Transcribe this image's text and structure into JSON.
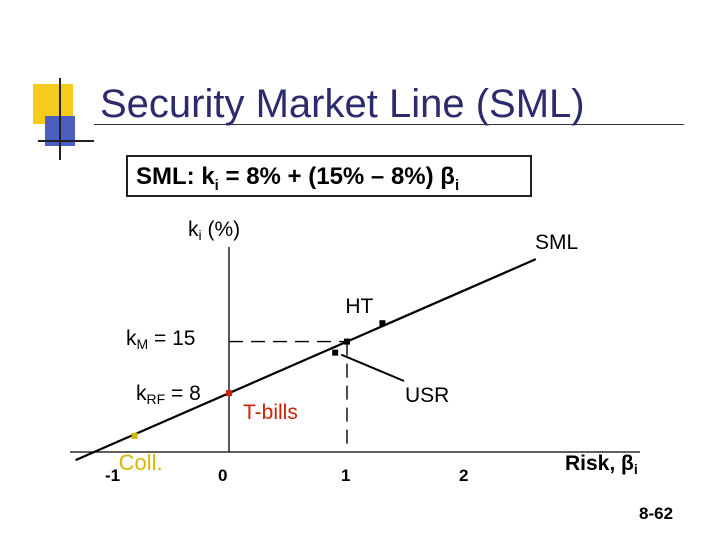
{
  "slide": {
    "title": "Security Market Line (SML)",
    "formula": {
      "prefix": "SML:  k",
      "sub_i": "i",
      "middle": " = 8% + (15% – 8%) β",
      "sub_i2": "i"
    },
    "page_number": "8-62",
    "colors": {
      "title": "#2b2b6e",
      "accent_yellow": "#f5cc1c",
      "accent_blue": "#4a5fc0",
      "tbills": "#cc2200",
      "coll": "#d4b800"
    }
  },
  "chart_data": {
    "type": "line",
    "title": "",
    "xlabel": "Risk, βi",
    "ylabel": "ki (%)",
    "x_ticks": [
      -1,
      0,
      1,
      2
    ],
    "xlim": [
      -1.3,
      3
    ],
    "ylim": [
      -1,
      26
    ],
    "grid": false,
    "series": [
      {
        "name": "SML",
        "intercept": 8,
        "slope": 7,
        "x_range": [
          -1.3,
          2.6
        ]
      }
    ],
    "y_reference_labels": [
      {
        "text_main": "k",
        "text_sub": "M",
        "text_rest": "  = 15",
        "value": 15
      },
      {
        "text_main": "k",
        "text_sub": "RF",
        "text_rest": "  =  8",
        "value": 8
      }
    ],
    "points": [
      {
        "label": "HT",
        "x": 1.3,
        "y": 17.5
      },
      {
        "label": "",
        "x": 1.0,
        "y": 15
      },
      {
        "label": "",
        "x": 0.9,
        "y": 13.5
      },
      {
        "label": "T-bills",
        "x": 0.0,
        "y": 8
      },
      {
        "label": "Coll.",
        "x": -0.8,
        "y": 2.2
      }
    ],
    "annotations": [
      {
        "text": "USR",
        "arrow_to": {
          "x": 0.9,
          "y": 13.5
        }
      }
    ]
  }
}
